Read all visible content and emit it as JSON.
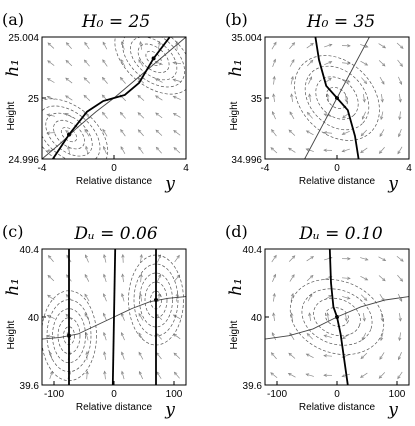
{
  "chart_data": [
    {
      "type": "line",
      "panel_label": "(a)",
      "title": "H₀ = 25",
      "xlabel": "Relative distance",
      "xsymbol": "y",
      "ylabel": "Height",
      "ysymbol": "h₁",
      "xlim": [
        -4,
        4
      ],
      "ylim": [
        24.996,
        25.004
      ],
      "x_ticks": [
        "-4",
        "0",
        "4"
      ],
      "y_ticks": [
        "25.004",
        "25",
        "24.996"
      ],
      "fixed_points": [
        [
          -2.5,
          24.9976
        ],
        [
          2.2,
          25.0026
        ]
      ],
      "nullclines": [
        {
          "style": "solid",
          "points": [
            [
              -4,
              24.996
            ],
            [
              -3,
              24.997
            ],
            [
              -2,
              24.9981
            ],
            [
              -1,
              24.9991
            ],
            [
              0,
              25.0
            ],
            [
              1,
              25.001
            ],
            [
              2,
              25.002
            ],
            [
              3,
              25.003
            ],
            [
              4,
              25.004
            ]
          ]
        },
        {
          "style": "thick",
          "points": [
            [
              -3.4,
              24.996
            ],
            [
              -2.5,
              24.9976
            ],
            [
              -1.5,
              24.9991
            ],
            [
              -0.6,
              24.9998
            ],
            [
              0,
              25.0
            ],
            [
              0.6,
              25.0002
            ],
            [
              1.4,
              25.001
            ],
            [
              2.2,
              25.0026
            ],
            [
              3.1,
              25.004
            ]
          ]
        }
      ],
      "grid": false
    },
    {
      "type": "line",
      "panel_label": "(b)",
      "title": "H₀ = 35",
      "xlabel": "Relative distance",
      "xsymbol": "y",
      "ylabel": "Height",
      "ysymbol": "h₁",
      "xlim": [
        -4,
        4
      ],
      "ylim": [
        34.996,
        35.004
      ],
      "x_ticks": [
        "-4",
        "0",
        "4"
      ],
      "y_ticks": [
        "35.004",
        "35",
        "34.996"
      ],
      "fixed_points": [
        [
          0,
          35.0
        ]
      ],
      "nullclines": [
        {
          "style": "solid",
          "points": [
            [
              -1.8,
              34.996
            ],
            [
              -0.9,
              34.998
            ],
            [
              0,
              35.0
            ],
            [
              0.9,
              35.002
            ],
            [
              1.8,
              35.004
            ]
          ]
        },
        {
          "style": "thick",
          "points": [
            [
              -1.2,
              35.004
            ],
            [
              -1.0,
              35.0025
            ],
            [
              -0.6,
              35.0008
            ],
            [
              0,
              35.0
            ],
            [
              0.6,
              34.9992
            ],
            [
              1.0,
              34.9975
            ],
            [
              1.2,
              34.996
            ]
          ]
        }
      ],
      "grid": false
    },
    {
      "type": "line",
      "panel_label": "(c)",
      "title": "Dᵤ = 0.06",
      "xlabel": "Relative distance",
      "xsymbol": "y",
      "ylabel": "Height",
      "ysymbol": "h₁",
      "xlim": [
        -120,
        120
      ],
      "ylim": [
        39.6,
        40.4
      ],
      "x_ticks": [
        "-100",
        "0",
        "100"
      ],
      "y_ticks": [
        "40.4",
        "40",
        "39.6"
      ],
      "fixed_points": [
        [
          -75,
          39.89
        ],
        [
          70,
          40.1
        ]
      ],
      "nullclines": [
        {
          "style": "solid",
          "points": [
            [
              -120,
              39.87
            ],
            [
              -90,
              39.88
            ],
            [
              -60,
              39.9
            ],
            [
              -30,
              39.95
            ],
            [
              0,
              40.0
            ],
            [
              30,
              40.05
            ],
            [
              60,
              40.09
            ],
            [
              90,
              40.11
            ],
            [
              120,
              40.12
            ]
          ]
        },
        {
          "style": "thick",
          "points": [
            [
              -75,
              39.6
            ],
            [
              -75,
              40.4
            ]
          ]
        },
        {
          "style": "thick",
          "points": [
            [
              -2,
              39.6
            ],
            [
              2,
              40.4
            ]
          ]
        },
        {
          "style": "thick",
          "points": [
            [
              70,
              39.6
            ],
            [
              70,
              40.4
            ]
          ]
        }
      ],
      "grid": false
    },
    {
      "type": "line",
      "panel_label": "(d)",
      "title": "Dᵤ = 0.10",
      "xlabel": "Relative distance",
      "xsymbol": "y",
      "ylabel": "Height",
      "ysymbol": "h₁",
      "xlim": [
        -120,
        120
      ],
      "ylim": [
        39.6,
        40.4
      ],
      "x_ticks": [
        "-100",
        "0",
        "100"
      ],
      "y_ticks": [
        "40.4",
        "40",
        "39.6"
      ],
      "fixed_points": [
        [
          0,
          40.0
        ]
      ],
      "nullclines": [
        {
          "style": "solid",
          "points": [
            [
              -120,
              39.87
            ],
            [
              -80,
              39.89
            ],
            [
              -40,
              39.93
            ],
            [
              0,
              40.0
            ],
            [
              40,
              40.06
            ],
            [
              80,
              40.1
            ],
            [
              120,
              40.12
            ]
          ]
        },
        {
          "style": "thick",
          "points": [
            [
              -12,
              40.4
            ],
            [
              -10,
              40.2
            ],
            [
              -6,
              40.06
            ],
            [
              0,
              40.0
            ],
            [
              6,
              39.9
            ],
            [
              12,
              39.75
            ],
            [
              18,
              39.6
            ]
          ]
        }
      ],
      "grid": false
    }
  ]
}
